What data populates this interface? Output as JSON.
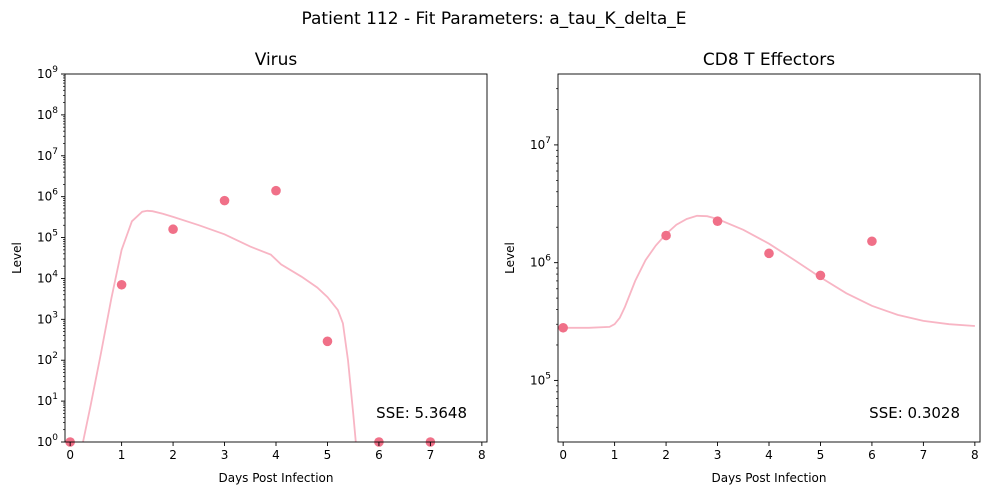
{
  "figure": {
    "suptitle": "Patient 112 - Fit Parameters: a_tau_K_delta_E"
  },
  "colors": {
    "point": "#f07088",
    "fit_line": "#f8b5c4",
    "axes": "#000000"
  },
  "chart_data": [
    {
      "type": "scatter",
      "title": "Virus",
      "xlabel": "Days Post Infection",
      "ylabel": "Level",
      "yscale": "log",
      "xlim": [
        -0.1,
        8.1
      ],
      "ylim": [
        1,
        1000000000
      ],
      "x_ticks": [
        "0",
        "1",
        "2",
        "3",
        "4",
        "5",
        "6",
        "7",
        "8"
      ],
      "y_ticks": [
        "10^0",
        "10^1",
        "10^2",
        "10^3",
        "10^4",
        "10^5",
        "10^6",
        "10^7",
        "10^8",
        "10^9"
      ],
      "grid": false,
      "legend": "none",
      "points": {
        "x": [
          0,
          1,
          2,
          3,
          4,
          5,
          6,
          7
        ],
        "y": [
          1,
          7000,
          160000,
          800000,
          1400000,
          290,
          1,
          1
        ]
      },
      "fit_curve": {
        "x": [
          0.25,
          0.4,
          0.6,
          0.8,
          1.0,
          1.2,
          1.4,
          1.5,
          1.6,
          1.8,
          2.0,
          2.5,
          3.0,
          3.5,
          3.9,
          4.1,
          4.5,
          4.8,
          5.0,
          5.2,
          5.3,
          5.4,
          5.5,
          5.55
        ],
        "y": [
          1,
          8,
          150,
          3200,
          50000,
          250000,
          430000,
          450000,
          440000,
          380000,
          320000,
          200000,
          120000,
          60000,
          38000,
          22000,
          11000,
          6000,
          3500,
          1700,
          800,
          100,
          5,
          1
        ]
      },
      "annotation": "SSE: 5.3648"
    },
    {
      "type": "scatter",
      "title": "CD8 T Effectors",
      "xlabel": "Days Post Infection",
      "ylabel": "Level",
      "yscale": "log",
      "xlim": [
        -0.1,
        8.1
      ],
      "ylim": [
        30000,
        40000000
      ],
      "x_ticks": [
        "0",
        "1",
        "2",
        "3",
        "4",
        "5",
        "6",
        "7",
        "8"
      ],
      "y_ticks": [
        "10^5",
        "10^6",
        "10^7"
      ],
      "grid": false,
      "legend": "none",
      "points": {
        "x": [
          0,
          2,
          3,
          4,
          5,
          6
        ],
        "y": [
          280000,
          1700000,
          2250000,
          1200000,
          780000,
          1520000
        ]
      },
      "fit_curve": {
        "x": [
          0,
          0.5,
          0.9,
          1.0,
          1.1,
          1.2,
          1.4,
          1.6,
          1.8,
          2.0,
          2.2,
          2.4,
          2.6,
          2.8,
          3.0,
          3.5,
          4.0,
          4.5,
          5.0,
          5.5,
          6.0,
          6.5,
          7.0,
          7.5,
          8.0
        ],
        "y": [
          280000,
          280000,
          285000,
          300000,
          340000,
          420000,
          700000,
          1050000,
          1400000,
          1750000,
          2100000,
          2350000,
          2500000,
          2480000,
          2350000,
          1900000,
          1450000,
          1050000,
          750000,
          550000,
          430000,
          360000,
          320000,
          300000,
          290000
        ]
      },
      "annotation": "SSE: 0.3028"
    }
  ]
}
